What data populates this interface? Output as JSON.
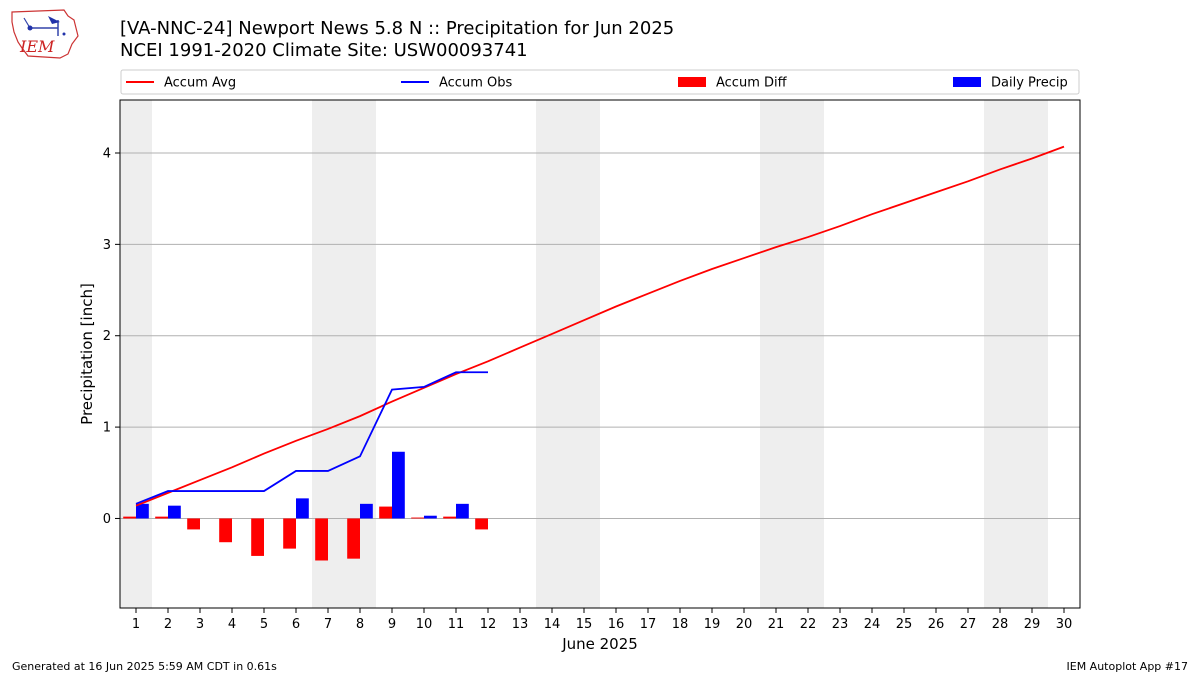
{
  "header": {
    "title_line1": "[VA-NNC-24] Newport News 5.8 N :: Precipitation for Jun 2025",
    "title_line2": "NCEI 1991-2020 Climate Site: USW00093741"
  },
  "logo": {
    "text": "IEM",
    "icon": "iem-logo-icon",
    "color": "#cc2222"
  },
  "footer": {
    "left": "Generated at 16 Jun 2025 5:59 AM CDT in 0.61s",
    "right": "IEM Autoplot App #17"
  },
  "colors": {
    "accum_avg": "#ff0000",
    "accum_obs": "#0000ff",
    "accum_diff": "#ff0000",
    "daily_precip": "#0000ff",
    "weekend_shade": "#eeeeee",
    "grid": "#b0b0b0"
  },
  "chart_data": {
    "type": "line",
    "xlabel": "June 2025",
    "ylabel": "Precipitation [inch]",
    "xlim": [
      0.5,
      30.5
    ],
    "ylim": [
      -0.98,
      4.58
    ],
    "yticks": [
      0,
      1,
      2,
      3,
      4
    ],
    "grid": "y",
    "legend_position": "top",
    "legend": [
      "Accum Avg",
      "Accum Obs",
      "Accum Diff",
      "Daily Precip"
    ],
    "days": [
      1,
      2,
      3,
      4,
      5,
      6,
      7,
      8,
      9,
      10,
      11,
      12,
      13,
      14,
      15,
      16,
      17,
      18,
      19,
      20,
      21,
      22,
      23,
      24,
      25,
      26,
      27,
      28,
      29,
      30
    ],
    "weekend_days": [
      1,
      7,
      8,
      14,
      15,
      21,
      22,
      28,
      29
    ],
    "accum_avg": [
      0.14,
      0.28,
      0.42,
      0.56,
      0.71,
      0.85,
      0.98,
      1.12,
      1.28,
      1.43,
      1.58,
      1.72,
      1.87,
      2.02,
      2.17,
      2.32,
      2.46,
      2.6,
      2.73,
      2.85,
      2.97,
      3.08,
      3.2,
      3.33,
      3.45,
      3.57,
      3.69,
      3.82,
      3.94,
      4.07
    ],
    "accum_obs": [
      0.16,
      0.3,
      0.3,
      0.3,
      0.3,
      0.52,
      0.52,
      0.68,
      1.41,
      1.44,
      1.6,
      1.6
    ],
    "accum_diff": [
      0.02,
      0.02,
      -0.12,
      -0.26,
      -0.41,
      -0.33,
      -0.46,
      -0.44,
      0.13,
      0.01,
      0.02,
      -0.12
    ],
    "daily_precip": [
      0.16,
      0.14,
      0.0,
      0.0,
      0.0,
      0.22,
      0.0,
      0.16,
      0.73,
      0.03,
      0.16,
      0.0
    ]
  }
}
